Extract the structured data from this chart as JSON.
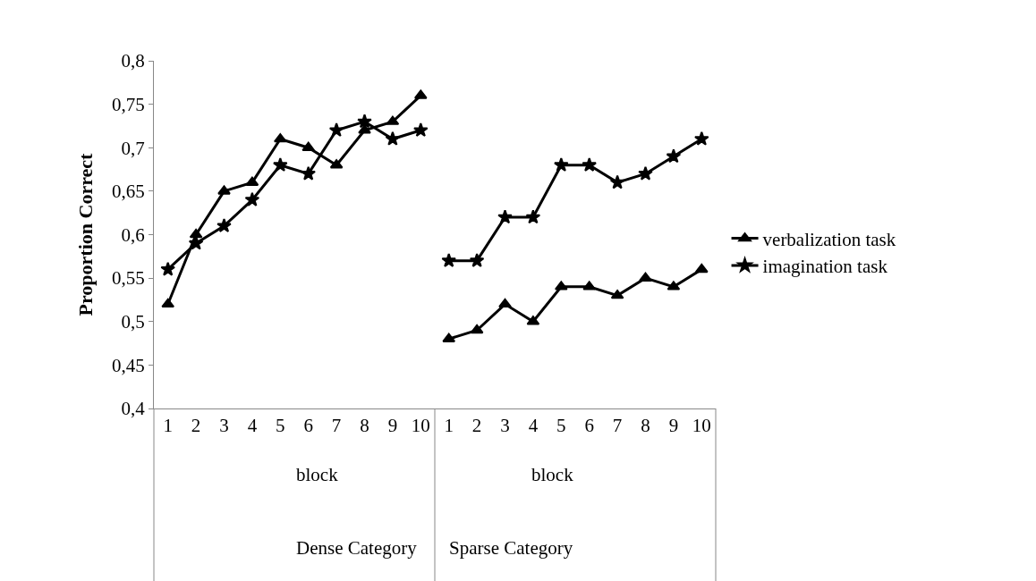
{
  "chart_data": {
    "type": "line",
    "ylabel": "Proportion Correct",
    "categories": [
      "1",
      "2",
      "3",
      "4",
      "5",
      "6",
      "7",
      "8",
      "9",
      "10",
      "1",
      "2",
      "3",
      "4",
      "5",
      "6",
      "7",
      "8",
      "9",
      "10"
    ],
    "series": [
      {
        "name": "verbalization task",
        "color": "#000000",
        "marker": "triangle",
        "values": [
          0.52,
          0.6,
          0.65,
          0.66,
          0.71,
          0.7,
          0.68,
          0.72,
          0.73,
          0.76,
          0.48,
          0.49,
          0.52,
          0.5,
          0.54,
          0.54,
          0.53,
          0.55,
          0.54,
          0.56
        ]
      },
      {
        "name": "imagination task",
        "color": "#000000",
        "marker": "star",
        "values": [
          0.56,
          0.59,
          0.61,
          0.64,
          0.68,
          0.67,
          0.72,
          0.73,
          0.71,
          0.72,
          0.57,
          0.57,
          0.62,
          0.62,
          0.68,
          0.68,
          0.66,
          0.67,
          0.69,
          0.71
        ]
      }
    ],
    "ylim": [
      0.4,
      0.8
    ],
    "yticks": [
      {
        "value": 0.4,
        "label": "0,4"
      },
      {
        "value": 0.45,
        "label": "0,45"
      },
      {
        "value": 0.5,
        "label": "0,5"
      },
      {
        "value": 0.55,
        "label": "0,55"
      },
      {
        "value": 0.6,
        "label": "0,6"
      },
      {
        "value": 0.65,
        "label": "0,65"
      },
      {
        "value": 0.7,
        "label": "0,7"
      },
      {
        "value": 0.75,
        "label": "0,75"
      },
      {
        "value": 0.8,
        "label": "0,8"
      }
    ],
    "annotations": [
      "block",
      "Dense Category",
      "block",
      "Sparse Category"
    ],
    "legend": "right",
    "line_style": "solid"
  }
}
